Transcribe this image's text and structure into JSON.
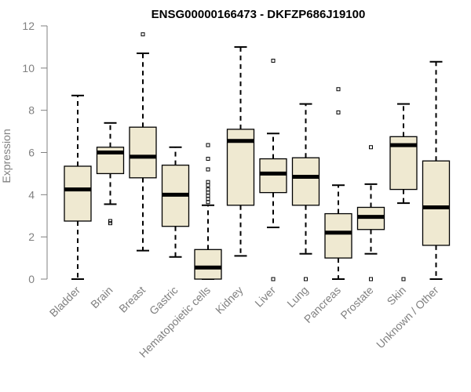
{
  "chart_data": {
    "type": "boxplot",
    "title": "ENSG00000166473 - DKFZP686J19100",
    "xlabel": "",
    "ylabel": "Expression",
    "ylim": [
      0,
      12
    ],
    "yticks": [
      0,
      2,
      4,
      6,
      8,
      10,
      12
    ],
    "colors": {
      "box_fill": "#efe9d1",
      "box_stroke": "#000000",
      "axis": "#808080"
    },
    "categories": [
      "Bladder",
      "Brain",
      "Breast",
      "Gastric",
      "Hematopoietic cells",
      "Kidney",
      "Liver",
      "Lung",
      "Pancreas",
      "Prostate",
      "Skin",
      "Unknown / Other"
    ],
    "boxes": [
      {
        "name": "Bladder",
        "min": 0.0,
        "q1": 2.75,
        "median": 4.25,
        "q3": 5.35,
        "max": 8.7,
        "outliers": []
      },
      {
        "name": "Brain",
        "min": 3.55,
        "q1": 5.0,
        "median": 6.0,
        "q3": 6.25,
        "max": 7.4,
        "outliers": [
          2.65,
          2.75
        ]
      },
      {
        "name": "Breast",
        "min": 1.35,
        "q1": 4.8,
        "median": 5.8,
        "q3": 7.2,
        "max": 10.7,
        "outliers": [
          11.6
        ]
      },
      {
        "name": "Gastric",
        "min": 1.05,
        "q1": 2.5,
        "median": 4.0,
        "q3": 5.4,
        "max": 6.25,
        "outliers": []
      },
      {
        "name": "Hematopoietic cells",
        "min": 0.0,
        "q1": 0.0,
        "median": 0.55,
        "q3": 1.4,
        "max": 3.5,
        "outliers": [
          3.65,
          3.8,
          3.95,
          4.1,
          4.25,
          4.45,
          4.6,
          5.2,
          5.7,
          6.35
        ]
      },
      {
        "name": "Kidney",
        "min": 1.1,
        "q1": 3.5,
        "median": 6.55,
        "q3": 7.1,
        "max": 11.0,
        "outliers": []
      },
      {
        "name": "Liver",
        "min": 2.45,
        "q1": 4.1,
        "median": 5.0,
        "q3": 5.7,
        "max": 6.9,
        "outliers": [
          0.0,
          10.35
        ]
      },
      {
        "name": "Lung",
        "min": 1.2,
        "q1": 3.5,
        "median": 4.85,
        "q3": 5.75,
        "max": 8.3,
        "outliers": [
          0.0
        ]
      },
      {
        "name": "Pancreas",
        "min": 0.0,
        "q1": 1.0,
        "median": 2.2,
        "q3": 3.1,
        "max": 4.45,
        "outliers": [
          7.9,
          9.0
        ]
      },
      {
        "name": "Prostate",
        "min": 1.2,
        "q1": 2.35,
        "median": 2.95,
        "q3": 3.4,
        "max": 4.5,
        "outliers": [
          0.0,
          6.25
        ]
      },
      {
        "name": "Skin",
        "min": 3.6,
        "q1": 4.25,
        "median": 6.35,
        "q3": 6.75,
        "max": 8.3,
        "outliers": [
          0.0
        ]
      },
      {
        "name": "Unknown / Other",
        "min": 0.0,
        "q1": 1.6,
        "median": 3.4,
        "q3": 5.6,
        "max": 10.3,
        "outliers": []
      }
    ]
  }
}
